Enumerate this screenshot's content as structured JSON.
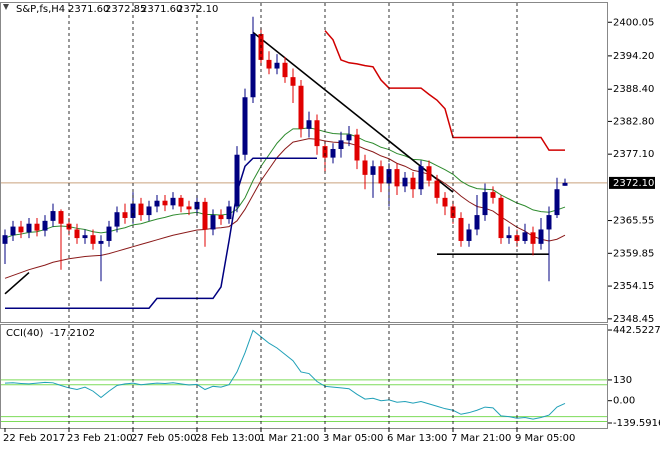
{
  "header": {
    "symbol": "S&P,fs,H4",
    "ohlc": [
      "2371.60",
      "2372.85",
      "2371.60",
      "2372.10"
    ]
  },
  "chart_data": [
    {
      "type": "candlestick",
      "categories": [
        "22 Feb 2017",
        null,
        null,
        null,
        null,
        null,
        null,
        null,
        "23 Feb 21:00",
        null,
        null,
        null,
        null,
        null,
        null,
        null,
        "27 Feb 05:00",
        null,
        null,
        null,
        null,
        null,
        null,
        null,
        "28 Feb 13:00",
        null,
        null,
        null,
        null,
        null,
        null,
        null,
        "1 Mar 21:00",
        null,
        null,
        null,
        null,
        null,
        null,
        null,
        "3 Mar 05:00",
        null,
        null,
        null,
        null,
        null,
        null,
        null,
        "6 Mar 13:00",
        null,
        null,
        null,
        null,
        null,
        null,
        null,
        "7 Mar 21:00",
        null,
        null,
        null,
        null,
        null,
        null,
        null,
        "9 Mar 05:00",
        null,
        null,
        null,
        null,
        null,
        null
      ],
      "open": [
        2361.5,
        2363,
        2364.5,
        2363.5,
        2365,
        2363.8,
        2365.5,
        2367.2,
        2365,
        2364,
        2362.5,
        2363,
        2361.5,
        2362,
        2364.5,
        2367,
        2366,
        2368.5,
        2366.5,
        2368,
        2369,
        2368.2,
        2369.5,
        2368,
        2367.5,
        2368.8,
        2364,
        2366.5,
        2365.8,
        2368,
        2377,
        2387,
        2398,
        2393.5,
        2392,
        2393,
        2390.5,
        2389,
        2381.5,
        2383,
        2378.5,
        2376.5,
        2378,
        2379.5,
        2380.5,
        2376,
        2373.5,
        2375,
        2372,
        2374.5,
        2371.5,
        2373,
        2371,
        2375,
        2372.5,
        2369.5,
        2368,
        2366,
        2362,
        2364,
        2366.5,
        2370.5,
        2369.5,
        2362.5,
        2363,
        2362,
        2363.5,
        2361.5,
        2364,
        2366.5,
        2371.6
      ],
      "high": [
        2364,
        2365.5,
        2365.5,
        2366,
        2366,
        2366.5,
        2368.5,
        2367.5,
        2366,
        2365,
        2364,
        2364,
        2363,
        2365.5,
        2368,
        2368.5,
        2370.5,
        2369.5,
        2369,
        2370,
        2370,
        2370.5,
        2370,
        2369,
        2370,
        2369.5,
        2367.5,
        2367.5,
        2369,
        2378.5,
        2388.5,
        2401,
        2399,
        2395,
        2394.5,
        2394,
        2392,
        2390,
        2384.5,
        2384,
        2379.5,
        2379,
        2381,
        2382,
        2381.5,
        2377,
        2376,
        2376,
        2375.5,
        2375.5,
        2374,
        2374,
        2376,
        2376,
        2373.5,
        2370.5,
        2369,
        2367,
        2365,
        2370,
        2372,
        2371.5,
        2370,
        2364.5,
        2364,
        2365,
        2364.5,
        2366,
        2368,
        2373,
        2372.85
      ],
      "low": [
        2358,
        2362,
        2362.5,
        2362.5,
        2362.8,
        2362.8,
        2364.5,
        2357,
        2363,
        2361.5,
        2361.5,
        2360.5,
        2355,
        2361,
        2363.5,
        2365,
        2365,
        2365.5,
        2365.5,
        2367,
        2367.2,
        2367.5,
        2367,
        2366.5,
        2366.5,
        2361,
        2363,
        2364.8,
        2365,
        2367,
        2376,
        2386,
        2392.5,
        2391,
        2391,
        2389.5,
        2386,
        2380,
        2380,
        2377,
        2374,
        2375.5,
        2376.5,
        2378.5,
        2374.5,
        2371,
        2369.5,
        2370.5,
        2368,
        2370,
        2370.5,
        2369.5,
        2370,
        2371.5,
        2368.5,
        2366.5,
        2365,
        2361,
        2361,
        2363,
        2365.5,
        2368.5,
        2361.5,
        2361.5,
        2361,
        2361.5,
        2359.5,
        2360.5,
        2355,
        2366,
        2371.6
      ],
      "close": [
        2363,
        2364.5,
        2363.5,
        2365,
        2363.8,
        2365.5,
        2367.2,
        2365,
        2364,
        2362.5,
        2363,
        2361.5,
        2362,
        2364.5,
        2367,
        2366,
        2368.5,
        2366.5,
        2368,
        2369,
        2368.2,
        2369.5,
        2368,
        2367.5,
        2368.8,
        2364,
        2366.5,
        2365.8,
        2368,
        2377,
        2387,
        2398,
        2393.5,
        2392,
        2393,
        2390.5,
        2389,
        2381.5,
        2383,
        2378.5,
        2376.5,
        2378,
        2379.5,
        2380.5,
        2376,
        2373.5,
        2375,
        2372,
        2374.5,
        2371.5,
        2373,
        2371,
        2375,
        2372.5,
        2369.5,
        2368,
        2366,
        2362,
        2364,
        2366.5,
        2370.5,
        2369.5,
        2362.5,
        2363,
        2362,
        2363.5,
        2361.5,
        2364,
        2366.5,
        2371,
        2372.1
      ],
      "up_color": "#000080",
      "down_color": "#e00000",
      "overlays": [
        {
          "color": "#2e8b2e",
          "values": [
            2362.5,
            2363,
            2363.2,
            2363.5,
            2363.6,
            2364,
            2364.5,
            2364.6,
            2364.5,
            2364.2,
            2364,
            2363.6,
            2363.4,
            2363.6,
            2364,
            2364.3,
            2364.8,
            2365,
            2365.4,
            2365.8,
            2366.1,
            2366.5,
            2366.7,
            2366.8,
            2367,
            2366.6,
            2366.6,
            2366.5,
            2366.7,
            2367.5,
            2369.5,
            2372.5,
            2375,
            2377,
            2379,
            2380.5,
            2381.5,
            2381.5,
            2381.7,
            2381.4,
            2381,
            2380.7,
            2380.6,
            2380.6,
            2380.1,
            2379.4,
            2379,
            2378.3,
            2377.9,
            2377.2,
            2376.8,
            2376.2,
            2376.1,
            2375.8,
            2375.1,
            2374.4,
            2373.6,
            2372.4,
            2371.6,
            2371.1,
            2371,
            2370.9,
            2370,
            2369.3,
            2368.6,
            2368.1,
            2367.4,
            2367.1,
            2367,
            2367.4,
            2367.9
          ]
        },
        {
          "color": "#8b1a1a",
          "values": [
            2355.5,
            2356,
            2356.5,
            2357,
            2357.4,
            2357.8,
            2358.3,
            2358.6,
            2358.9,
            2359.1,
            2359.3,
            2359.4,
            2359.5,
            2359.8,
            2360.2,
            2360.6,
            2361,
            2361.4,
            2361.8,
            2362.2,
            2362.6,
            2363,
            2363.3,
            2363.6,
            2363.9,
            2364,
            2364.2,
            2364.3,
            2364.5,
            2365.5,
            2367.5,
            2370,
            2372.5,
            2374.5,
            2376.5,
            2378,
            2379.2,
            2379.5,
            2379.8,
            2379.7,
            2379.4,
            2379.2,
            2379.1,
            2379,
            2378.6,
            2378,
            2377.5,
            2376.8,
            2376.3,
            2375.5,
            2375,
            2374.3,
            2374,
            2373.6,
            2372.9,
            2372,
            2371,
            2369.8,
            2368.8,
            2368,
            2367.7,
            2367.2,
            2366.2,
            2365.3,
            2364.4,
            2363.7,
            2362.8,
            2362.3,
            2362,
            2362.3,
            2363
          ]
        },
        {
          "color": "#000080",
          "values": [
            2350.3,
            2350.3,
            2350.3,
            2350.3,
            2350.3,
            2350.3,
            2350.3,
            2350.3,
            2350.3,
            2350.3,
            2350.3,
            2350.3,
            2350.3,
            2350.3,
            2350.3,
            2350.3,
            2350.3,
            2350.3,
            2350.3,
            2352,
            2352,
            2352,
            2352,
            2352,
            2352,
            2352,
            2352,
            2354,
            2362,
            2370.5,
            2375,
            2376.4,
            2376.4,
            2376.4,
            2376.4,
            2376.4,
            2376.4,
            2376.4,
            2376.4,
            2376.4,
            null,
            null,
            null,
            null,
            null,
            null,
            null,
            null,
            null,
            null,
            null,
            null,
            null,
            null,
            null,
            null,
            null,
            null,
            null,
            null,
            null,
            null,
            null,
            null,
            null,
            null,
            null,
            null,
            null,
            null,
            null
          ]
        },
        {
          "color": "#d00000",
          "values": [
            null,
            null,
            null,
            null,
            null,
            null,
            null,
            null,
            null,
            null,
            null,
            null,
            null,
            null,
            null,
            null,
            null,
            null,
            null,
            null,
            null,
            null,
            null,
            null,
            null,
            null,
            null,
            null,
            null,
            null,
            null,
            null,
            null,
            null,
            null,
            null,
            null,
            null,
            null,
            null,
            2398.6,
            2397,
            2393.5,
            2393,
            2392.8,
            2392.5,
            2392.3,
            2390,
            2388.6,
            2388.6,
            2388.6,
            2388.6,
            2388.6,
            2387.5,
            2386.5,
            2385,
            2380,
            2380,
            2380,
            2380,
            2380,
            2380,
            2380,
            2380,
            2380,
            2380,
            2380,
            2380,
            2377.8,
            2377.8,
            2377.8
          ]
        }
      ],
      "trend_lines": [
        {
          "x": [
            31,
            56
          ],
          "y": [
            2398.3,
            2370.5
          ]
        },
        {
          "x": [
            54,
            68
          ],
          "y": [
            2359.7,
            2359.7
          ]
        },
        {
          "x": [
            0,
            3
          ],
          "y": [
            2352.8,
            2356.5
          ]
        }
      ],
      "last_price": {
        "value": 2372.1,
        "label": "2372.10"
      },
      "ylim": [
        2347.9,
        2403.4
      ],
      "yticks": [
        2400.05,
        {
          "value": 2394.2,
          "label": "2394.20"
        },
        {
          "value": 2388.4,
          "label": "2388.40"
        },
        {
          "value": 2382.8,
          "label": "2382.80"
        },
        {
          "value": 2377.1,
          "label": "2377.10"
        },
        2365.55,
        2359.85,
        2354.15,
        2348.45
      ]
    },
    {
      "type": "line",
      "title": "CCI(40)",
      "color": "#20a0b8",
      "values": [
        110,
        112,
        108,
        105,
        110,
        115,
        112,
        95,
        80,
        70,
        85,
        60,
        20,
        60,
        95,
        105,
        110,
        100,
        105,
        110,
        108,
        112,
        105,
        98,
        102,
        70,
        90,
        85,
        100,
        180,
        300,
        440,
        400,
        360,
        330,
        290,
        250,
        180,
        170,
        120,
        90,
        85,
        80,
        75,
        40,
        10,
        15,
        0,
        5,
        -10,
        -5,
        -15,
        -5,
        -20,
        -35,
        -50,
        -60,
        -85,
        -75,
        -60,
        -40,
        -45,
        -95,
        -100,
        -110,
        -105,
        -115,
        -105,
        -90,
        -40,
        -17.2102
      ],
      "levels": [
        130,
        100,
        -100,
        -130
      ],
      "level_color": "#7ddc5a",
      "ylim": [
        -171,
        474
      ],
      "yticks": [
        442.5227,
        130,
        {
          "value": 0,
          "label": "0.00"
        },
        -139.5916
      ]
    }
  ]
}
